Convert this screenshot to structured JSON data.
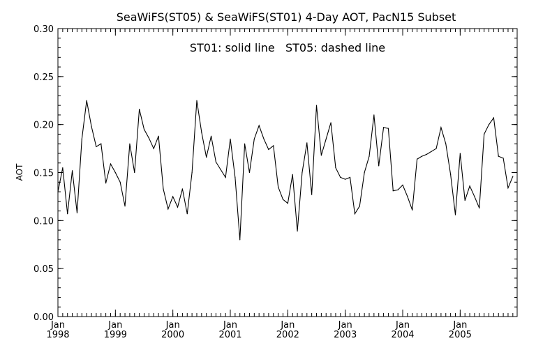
{
  "chart_data": {
    "type": "line",
    "title": "SeaWiFS(ST05) & SeaWiFS(ST01) 4-Day AOT, PacN15 Subset",
    "annotation": "ST01: solid line   ST05: dashed line",
    "ylabel": "AOT",
    "xlabel": "",
    "ylim": [
      0.0,
      0.3
    ],
    "yticks": [
      "0.00",
      "0.05",
      "0.10",
      "0.15",
      "0.20",
      "0.25",
      "0.30"
    ],
    "xlim": [
      "1998-01",
      "2005-12"
    ],
    "xticks": [
      {
        "month": "Jan",
        "year": "1998"
      },
      {
        "month": "Jan",
        "year": "1999"
      },
      {
        "month": "Jan",
        "year": "2000"
      },
      {
        "month": "Jan",
        "year": "2001"
      },
      {
        "month": "Jan",
        "year": "2002"
      },
      {
        "month": "Jan",
        "year": "2003"
      },
      {
        "month": "Jan",
        "year": "2004"
      },
      {
        "month": "Jan",
        "year": "2005"
      }
    ],
    "grid": false,
    "series": [
      {
        "name": "ST01",
        "style": "solid",
        "color": "#000000",
        "x": [
          "1998-01",
          "1998-02",
          "1998-03",
          "1998-04",
          "1998-05",
          "1998-06",
          "1998-07",
          "1998-08",
          "1998-09",
          "1998-10",
          "1998-11",
          "1998-12",
          "1999-01",
          "1999-02",
          "1999-03",
          "1999-04",
          "1999-05",
          "1999-06",
          "1999-07",
          "1999-08",
          "1999-09",
          "1999-10",
          "1999-11",
          "1999-12",
          "2000-01",
          "2000-02",
          "2000-03",
          "2000-04",
          "2000-05",
          "2000-06",
          "2000-07",
          "2000-08",
          "2000-09",
          "2000-10",
          "2000-11",
          "2000-12",
          "2001-01",
          "2001-02",
          "2001-03",
          "2001-04",
          "2001-05",
          "2001-06",
          "2001-07",
          "2001-08",
          "2001-09",
          "2001-10",
          "2001-11",
          "2001-12",
          "2002-01",
          "2002-02",
          "2002-03",
          "2002-04",
          "2002-05",
          "2002-06",
          "2002-07",
          "2002-08",
          "2002-09",
          "2002-10",
          "2002-11",
          "2002-12",
          "2003-01",
          "2003-02",
          "2003-03",
          "2003-04",
          "2003-05",
          "2003-06",
          "2003-07",
          "2003-08",
          "2003-09",
          "2003-10",
          "2003-11",
          "2003-12",
          "2004-01",
          "2004-02",
          "2004-03",
          "2004-04",
          "2004-05",
          "2004-06",
          "2004-07",
          "2004-08",
          "2004-09",
          "2004-10",
          "2004-11",
          "2004-12",
          "2005-01",
          "2005-02",
          "2005-03",
          "2005-04",
          "2005-05",
          "2005-06",
          "2005-07",
          "2005-08",
          "2005-09",
          "2005-10",
          "2005-11",
          "2005-12"
        ],
        "values": [
          0.13,
          0.155,
          0.107,
          0.152,
          0.108,
          0.185,
          0.225,
          0.198,
          0.177,
          0.18,
          0.139,
          0.159,
          0.15,
          0.14,
          0.115,
          0.18,
          0.15,
          0.216,
          0.195,
          0.186,
          0.175,
          0.188,
          0.133,
          0.112,
          0.125,
          0.114,
          0.133,
          0.107,
          0.15,
          0.225,
          0.192,
          0.166,
          0.188,
          0.161,
          0.153,
          0.145,
          0.185,
          0.145,
          0.08,
          0.18,
          0.15,
          0.185,
          0.199,
          0.185,
          0.174,
          0.178,
          0.135,
          0.122,
          0.118,
          0.148,
          0.089,
          0.15,
          0.181,
          0.127,
          0.22,
          0.168,
          0.185,
          0.202,
          0.155,
          0.145,
          0.143,
          0.145,
          0.107,
          0.115,
          0.15,
          0.167,
          0.21,
          0.157,
          0.197,
          0.196,
          0.131,
          0.132,
          0.137,
          0.125,
          0.111,
          0.164,
          0.167,
          0.169,
          0.172,
          0.175,
          0.197,
          0.18,
          0.148,
          0.106,
          0.17,
          0.121,
          0.136,
          0.125,
          0.113,
          0.19,
          0.2,
          0.207,
          0.167,
          0.165,
          0.134,
          0.146
        ]
      }
    ]
  },
  "colors": {
    "background": "#ffffff",
    "axis": "#000000",
    "line": "#000000"
  }
}
